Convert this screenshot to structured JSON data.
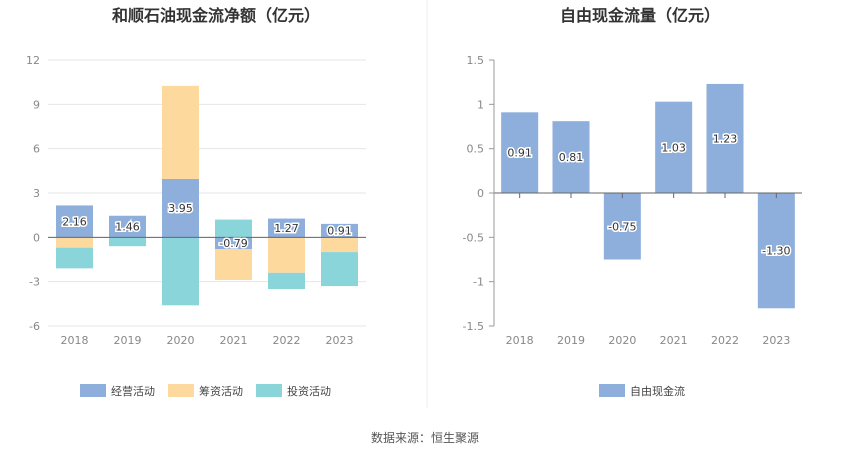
{
  "source_text": "数据来源：恒生聚源",
  "chart_data": [
    {
      "type": "bar",
      "stacked": true,
      "title": "和顺石油现金流净额（亿元）",
      "categories": [
        "2018",
        "2019",
        "2020",
        "2021",
        "2022",
        "2023"
      ],
      "ylim": [
        -6,
        12
      ],
      "yticks": [
        12,
        9,
        6,
        3,
        0,
        -3,
        -6
      ],
      "grid": true,
      "legend_position": "bottom",
      "series": [
        {
          "name": "经营活动",
          "color": "#8eaedb",
          "values": [
            2.16,
            1.46,
            3.95,
            -0.79,
            1.27,
            0.91
          ],
          "labeled": true
        },
        {
          "name": "筹资活动",
          "color": "#fed99e",
          "values": [
            -0.7,
            0.0,
            6.3,
            -2.1,
            -2.4,
            -1.0
          ],
          "labeled": false
        },
        {
          "name": "投资活动",
          "color": "#89d5d9",
          "values": [
            -1.4,
            -0.6,
            -4.6,
            1.2,
            -1.1,
            -2.3
          ],
          "labeled": false
        }
      ]
    },
    {
      "type": "bar",
      "title": "自由现金流量（亿元）",
      "categories": [
        "2018",
        "2019",
        "2020",
        "2021",
        "2022",
        "2023"
      ],
      "ylim": [
        -1.5,
        1.5
      ],
      "yticks": [
        1.5,
        1,
        0.5,
        0,
        -0.5,
        -1,
        -1.5
      ],
      "ytick_labels": [
        "1.5",
        "1",
        "0.5",
        "0",
        "-0.5",
        "-1",
        "-1.5"
      ],
      "grid": false,
      "legend_position": "bottom",
      "series": [
        {
          "name": "自由现金流",
          "color": "#8eaedb",
          "values": [
            0.91,
            0.81,
            -0.75,
            1.03,
            1.23,
            -1.3
          ],
          "labels": [
            "0.91",
            "0.81",
            "-0.75",
            "1.03",
            "1.23",
            "-1.30"
          ],
          "labeled": true
        }
      ]
    }
  ]
}
